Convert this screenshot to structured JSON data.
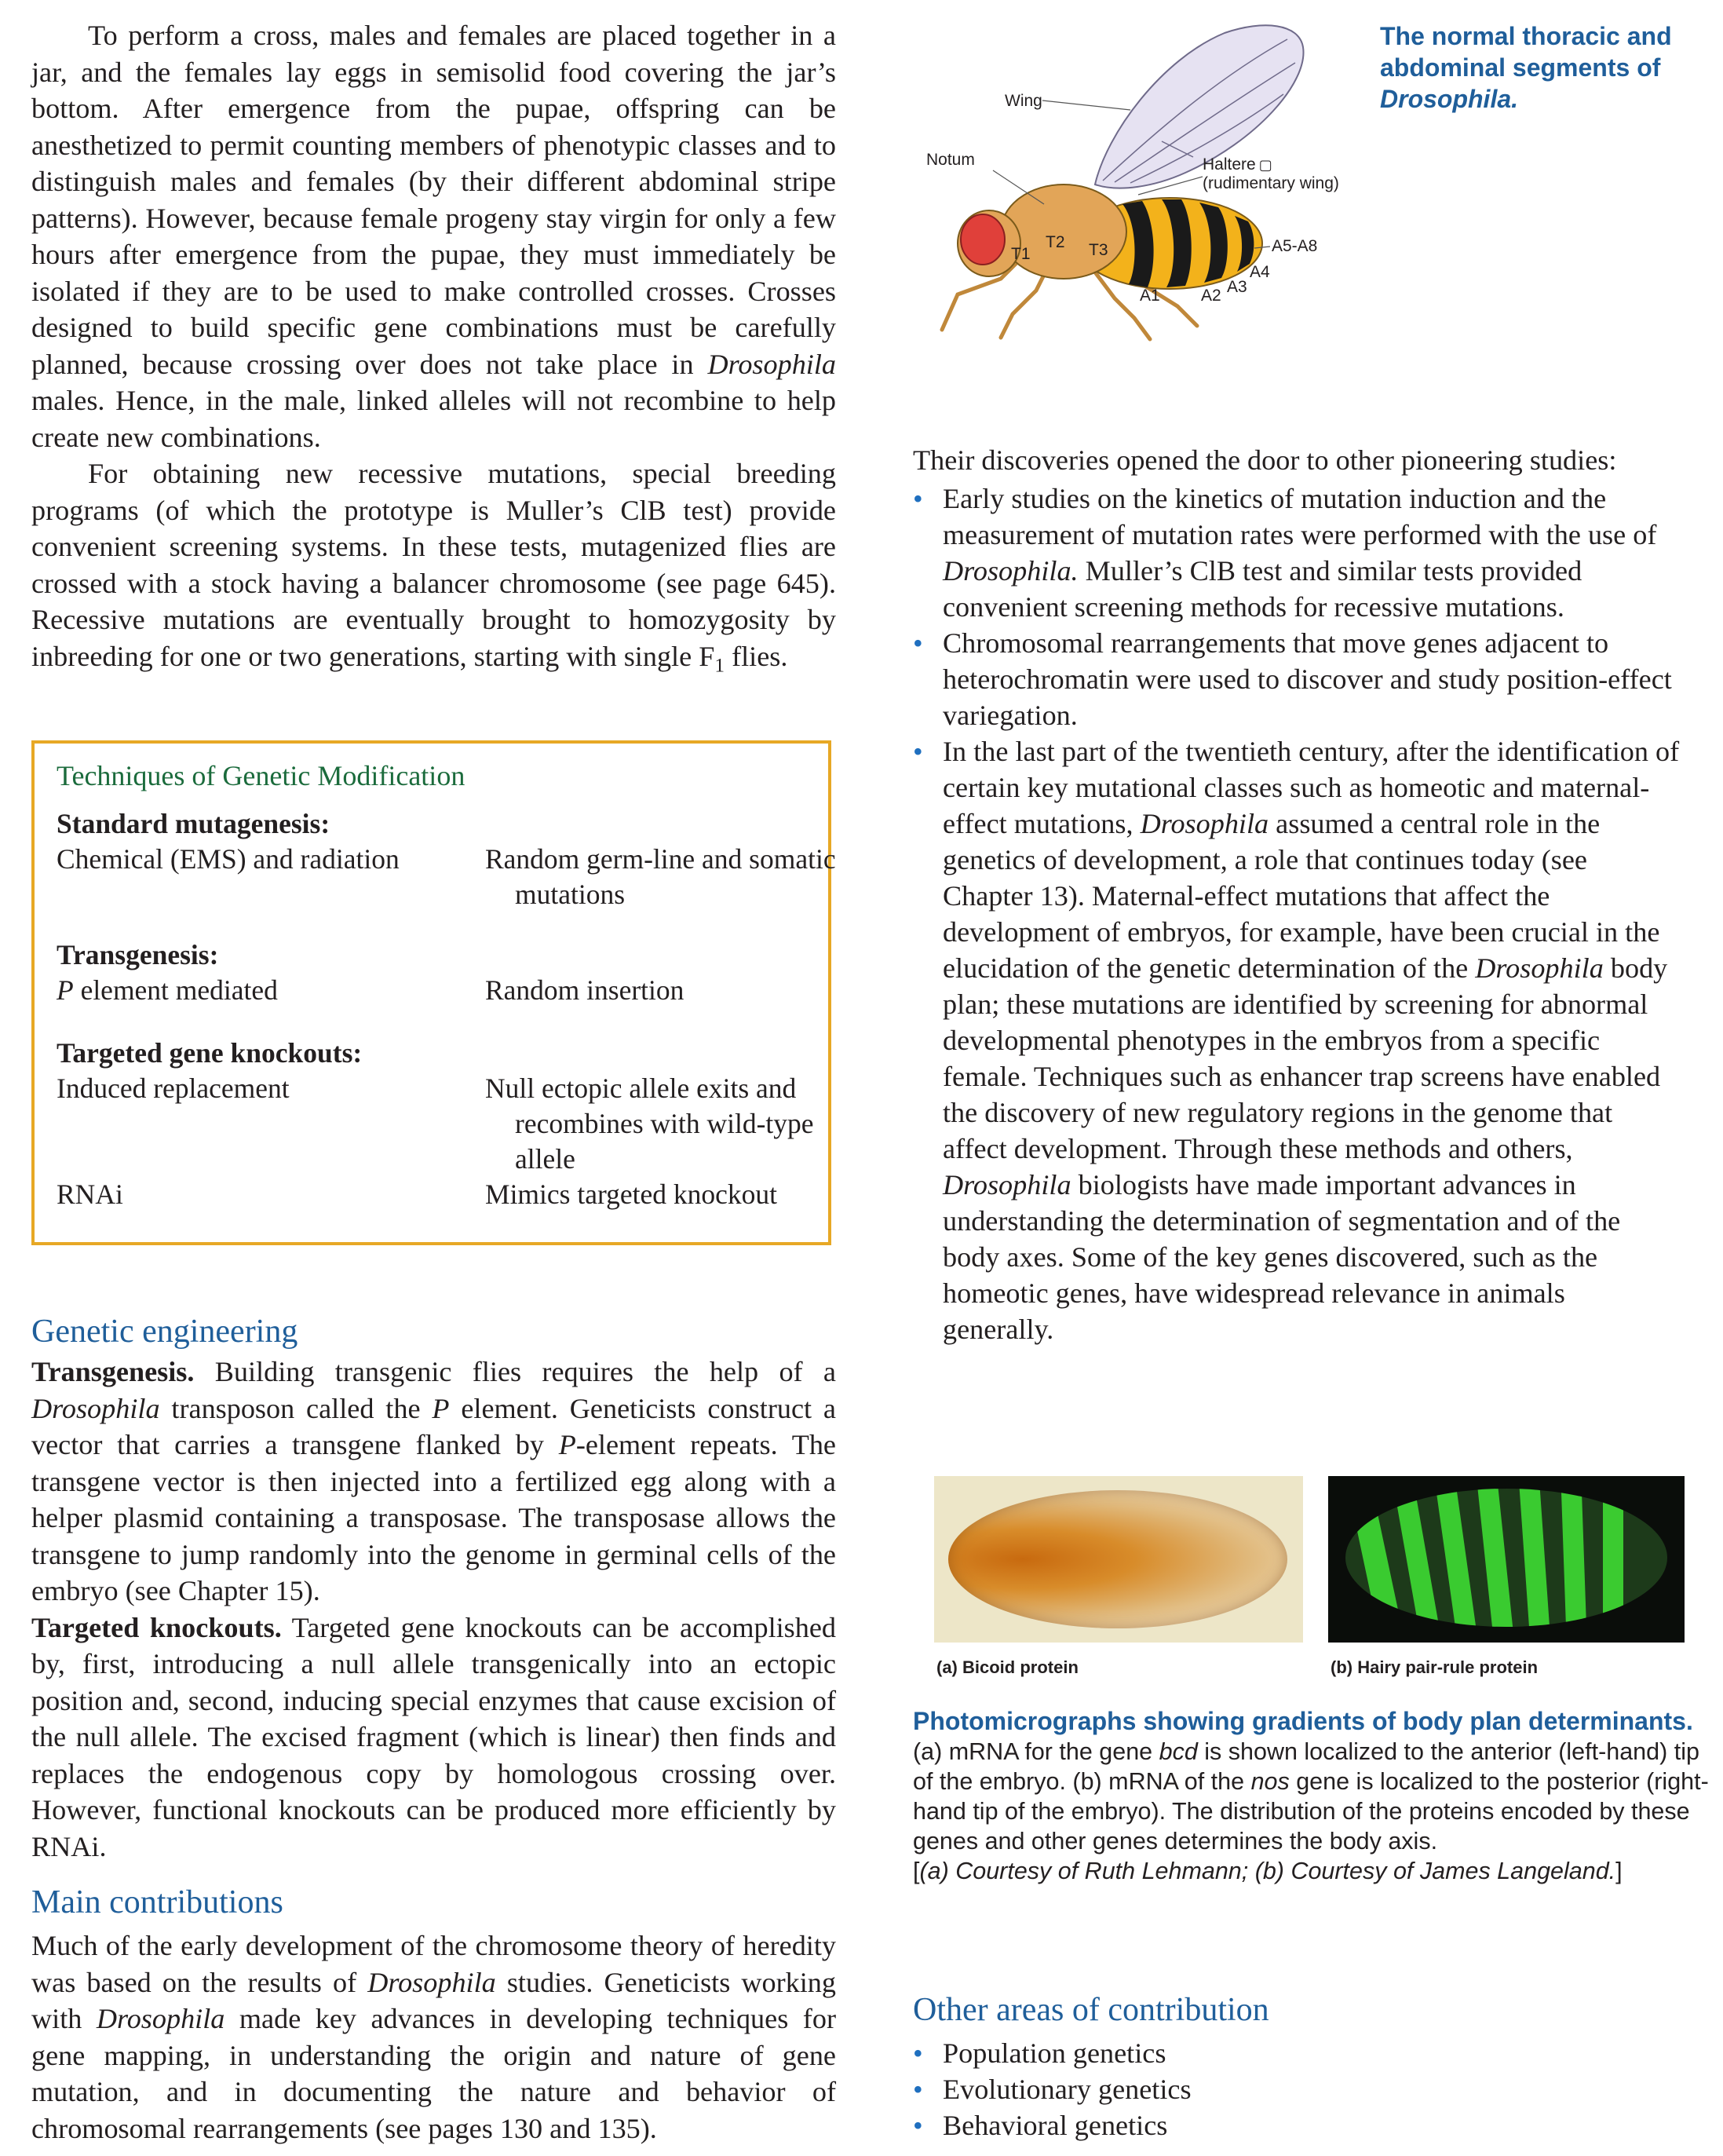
{
  "left": {
    "para1": "To perform a cross, males and females are placed together in a jar, and the females lay eggs in semisolid food covering the jar’s bottom. After emergence from the pupae, offspring can be anesthetized to permit counting members of phenotypic classes and to distinguish males and females (by their different abdominal stripe patterns). However, because female progeny stay virgin for only a few hours after emergence from the pupae, they must immediately be isolated if they are to be used to make controlled crosses. Crosses designed to build specific gene combinations must be carefully planned, because crossing over does not take place in",
    "para1_italic": "Drosophila",
    "para1_end": " males. Hence, in the male, linked alleles will not recombine to help create new combinations.",
    "para2": "For obtaining new recessive mutations, special breeding programs (of which the prototype is Muller’s ClB test) provide convenient screening systems. In these tests, mutagenized flies are crossed with a stock having a balancer chromosome (see page 645). Recessive mutations are eventually brought to homozygosity by inbreeding for one or two generations, starting with single F",
    "para2_sub": "1",
    "para2_end": " flies."
  },
  "techniques": {
    "title": "Techniques of Genetic Modification",
    "std_head": "Standard mutagenesis:",
    "std_left": "Chemical (EMS) and radiation",
    "std_right": "Random germ-line and somatic mutations",
    "trans_head": "Transgenesis:",
    "trans_left_italic": "P",
    "trans_left": " element mediated",
    "trans_right": "Random insertion",
    "ko_head": "Targeted gene knockouts:",
    "ko_left": "Induced replacement",
    "ko_right": "Null ectopic allele exits and recombines with wild-type allele",
    "rnai_left": "RNAi",
    "rnai_right": "Mimics targeted knockout"
  },
  "genetic_engineering": {
    "heading": "Genetic engineering",
    "p1_runin": "Transgenesis.",
    "p1_a": " Building transgenic flies requires the help of a ",
    "p1_i1": "Drosophila",
    "p1_b": " transposon called the ",
    "p1_i2": "P",
    "p1_c": " element. Geneticists construct a vector that carries a transgene flanked by ",
    "p1_i3": "P",
    "p1_d": "-element repeats. The transgene vector is then injected into a fertilized egg along with a helper plasmid containing a transposase. The transposase allows the transgene to jump randomly into the genome in germinal cells of the embryo (see Chapter 15).",
    "p2_runin": "Targeted knockouts.",
    "p2": " Targeted gene knockouts can be accomplished by, first, introducing a null allele transgenically into an ectopic position and, second, inducing special enzymes that cause excision of the null allele. The excised fragment (which is linear) then finds and replaces the endogenous copy by homologous crossing over. However, functional knockouts can be produced more efficiently by RNAi."
  },
  "main_contributions": {
    "heading": "Main contributions",
    "p_a": "Much of the early development of the chromosome theory of heredity was based on the results of ",
    "p_i1": "Drosophila",
    "p_b": " studies. Geneticists working with ",
    "p_i2": "Drosophila",
    "p_c": " made key advances in developing techniques for gene mapping, in understanding the origin and nature of gene mutation, and in documenting the nature and behavior of chromosomal rearrangements (see pages 130 and 135)."
  },
  "fly_figure": {
    "caption_line1": "The normal thoracic and",
    "caption_line2": "abdominal segments of",
    "caption_line3": "Drosophila.",
    "labels": {
      "wing": "Wing",
      "notum": "Notum",
      "haltere1": "Haltere",
      "haltere2": "(rudimentary wing)",
      "t1": "T1",
      "t2": "T2",
      "t3": "T3",
      "a1": "A1",
      "a2": "A2",
      "a3": "A3",
      "a4": "A4",
      "a58": "A5-A8"
    }
  },
  "right": {
    "intro": "Their discoveries opened the door to other pioneering studies:",
    "b1_a": "Early studies on the kinetics of mutation induction and the measurement of mutation rates were performed with the use of ",
    "b1_i": "Drosophila.",
    "b1_b": " Muller’s ClB test and similar tests provided convenient screening methods for recessive mutations.",
    "b2": "Chromosomal rearrangements that move genes adjacent to heterochromatin were used to discover and study position-effect variegation.",
    "b3_a": "In the last part of the twentieth century, after the identification of certain key mutational classes such as homeotic and maternal-effect mutations, ",
    "b3_i1": "Drosophila",
    "b3_b": " assumed a central role in the genetics of development, a role that continues today (see Chapter 13). Maternal-effect mutations that affect the development of embryos, for example, have been crucial in the elucidation of the genetic determination of the ",
    "b3_i2": "Drosophila",
    "b3_c": " body plan; these mutations are identified by screening for abnormal developmental phenotypes in the embryos from a specific female. Techniques such as enhancer trap screens have enabled the discovery of new regulatory regions in the genome that affect development. Through these methods and others, ",
    "b3_i3": "Drosophila",
    "b3_d": " biologists have made important advances in understanding the determination of segmentation and of the body axes. Some of the key genes discovered, such as the homeotic genes, have widespread relevance in animals generally."
  },
  "photo_figure": {
    "label_a": "(a)  Bicoid protein",
    "label_b": "(b)  Hairy pair-rule protein",
    "caption_title": "Photomicrographs showing gradients of body plan determinants.",
    "cap_a": "(a) mRNA for the gene ",
    "cap_i1": "bcd",
    "cap_b": " is shown localized to the anterior (left-hand) tip of the embryo. (b) mRNA of the ",
    "cap_i2": "nos",
    "cap_c": " gene is localized to the posterior (right-hand tip of the embryo). The distribution of the proteins encoded by these genes and other genes determines the body axis.",
    "credit": "[(a) Courtesy of Ruth Lehmann; (b) Courtesy of James Langeland.]",
    "credit_open": "[",
    "credit_text": "(a) Courtesy of Ruth Lehmann; (b) Courtesy of James Langeland.",
    "credit_close": "]"
  },
  "other_areas": {
    "heading": "Other areas of contribution",
    "items": [
      "Population genetics",
      "Evolutionary genetics",
      "Behavioral genetics"
    ]
  }
}
